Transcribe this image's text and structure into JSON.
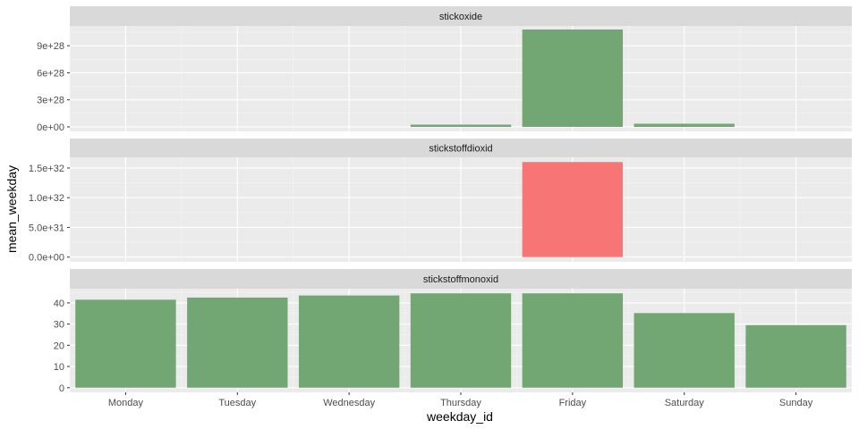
{
  "chart_data": {
    "type": "bar",
    "layout": "faceted-vertical",
    "categories": [
      "Monday",
      "Tuesday",
      "Wednesday",
      "Thursday",
      "Friday",
      "Saturday",
      "Sunday"
    ],
    "xlabel": "weekday_id",
    "ylabel": "mean_weekday",
    "grid": true,
    "legend": "none",
    "facets": [
      {
        "name": "stickoxide",
        "values": [
          0,
          0,
          0,
          2.5e+27,
          1.08e+29,
          3.5e+27,
          0
        ],
        "ylim": [
          -5e+27,
          1.12e+29
        ],
        "yticks": [
          0,
          3e+28,
          6e+28,
          9e+28
        ],
        "ytick_labels": [
          "0e+00",
          "3e+28",
          "6e+28",
          "9e+28"
        ],
        "bar_colors": [
          "#72a672",
          "#72a672",
          "#72a672",
          "#72a672",
          "#72a672",
          "#72a672",
          "#72a672"
        ]
      },
      {
        "name": "stickstoffdioxid",
        "values": [
          0,
          0,
          0,
          0,
          1.6e+32,
          0,
          0
        ],
        "ylim": [
          -8e+30,
          1.68e+32
        ],
        "yticks": [
          0,
          5e+31,
          1e+32,
          1.5e+32
        ],
        "ytick_labels": [
          "0.0e+00",
          "5.0e+31",
          "1.0e+32",
          "1.5e+32"
        ],
        "bar_colors": [
          "#f87575",
          "#f87575",
          "#f87575",
          "#f87575",
          "#f87575",
          "#f87575",
          "#f87575"
        ]
      },
      {
        "name": "stickstoffmonoxid",
        "values": [
          41.5,
          42.5,
          43.5,
          44.5,
          44.5,
          35.2,
          29.5
        ],
        "ylim": [
          -2.2,
          46.7
        ],
        "yticks": [
          0,
          10,
          20,
          30,
          40
        ],
        "ytick_labels": [
          "0",
          "10",
          "20",
          "30",
          "40"
        ],
        "bar_colors": [
          "#72a672",
          "#72a672",
          "#72a672",
          "#72a672",
          "#72a672",
          "#72a672",
          "#72a672"
        ]
      }
    ]
  },
  "colors": {
    "panel_bg": "#ebebeb",
    "strip_bg": "#d9d9d9",
    "grid_major": "#ffffff",
    "grid_minor": "#f5f5f5"
  }
}
